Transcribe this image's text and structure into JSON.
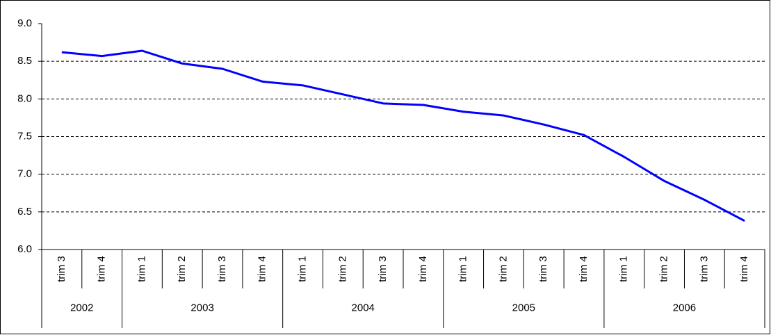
{
  "chart_data": {
    "type": "line",
    "category_groups": [
      {
        "label": "2002",
        "categories": [
          "trim 3",
          "trim 4"
        ]
      },
      {
        "label": "2003",
        "categories": [
          "trim 1",
          "trim 2",
          "trim 3",
          "trim 4"
        ]
      },
      {
        "label": "2004",
        "categories": [
          "trim 1",
          "trim 2",
          "trim 3",
          "trim 4"
        ]
      },
      {
        "label": "2005",
        "categories": [
          "trim 1",
          "trim 2",
          "trim 3",
          "trim 4"
        ]
      },
      {
        "label": "2006",
        "categories": [
          "trim 1",
          "trim 2",
          "trim 3",
          "trim 4"
        ]
      }
    ],
    "series": [
      {
        "color": "#0000ff",
        "values": [
          8.62,
          8.57,
          8.64,
          8.47,
          8.4,
          8.23,
          8.18,
          8.06,
          7.94,
          7.92,
          7.83,
          7.78,
          7.66,
          7.52,
          7.23,
          6.91,
          6.66,
          6.38
        ]
      }
    ],
    "ylim": [
      6,
      9
    ],
    "yticks": [
      {
        "value": 6,
        "label": "6.0"
      },
      {
        "value": 6.5,
        "label": "6.5"
      },
      {
        "value": 7,
        "label": "7.0"
      },
      {
        "value": 7.5,
        "label": "7.5"
      },
      {
        "value": 8,
        "label": "8.0"
      },
      {
        "value": 8.5,
        "label": "8.5"
      },
      {
        "value": 9,
        "label": "9.0"
      }
    ],
    "grid": true
  }
}
